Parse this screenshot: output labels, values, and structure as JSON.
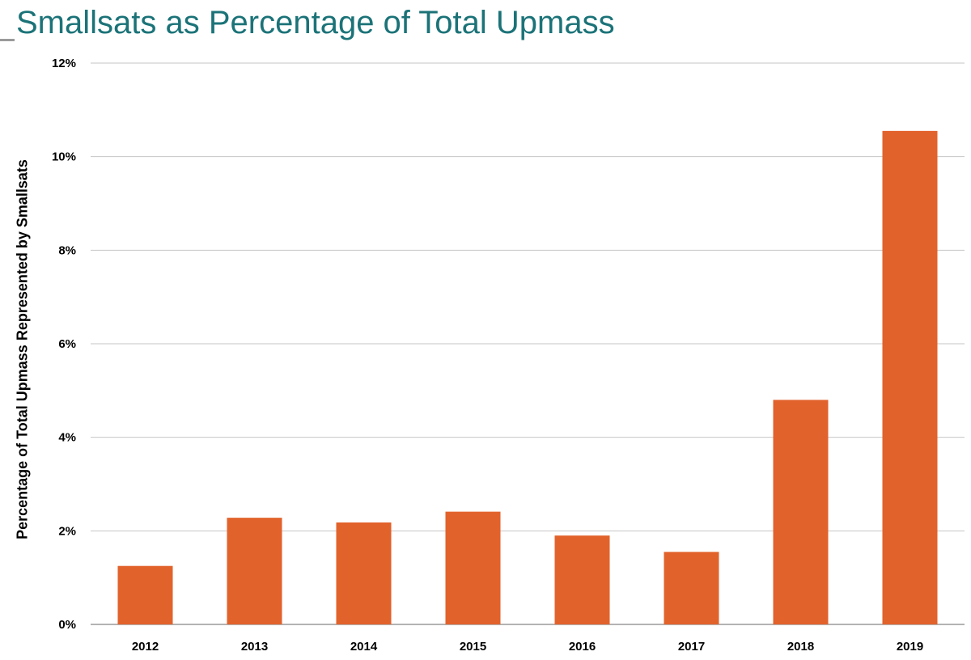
{
  "colors": {
    "title": "#1b7378",
    "bar": "#e2622b",
    "grid": "#c6c6c6",
    "axis": "#9a9a9a"
  },
  "chart_data": {
    "type": "bar",
    "title": "Smallsats as Percentage of Total Upmass",
    "xlabel": "",
    "ylabel": "Percentage of Total Upmass Represented by Smallsats",
    "categories": [
      "2012",
      "2013",
      "2014",
      "2015",
      "2016",
      "2017",
      "2018",
      "2019"
    ],
    "values": [
      1.25,
      2.28,
      2.18,
      2.41,
      1.9,
      1.55,
      4.8,
      10.55
    ],
    "ylim": [
      0,
      12
    ],
    "yticks": [
      0,
      2,
      4,
      6,
      8,
      10,
      12
    ],
    "ytick_labels": [
      "0%",
      "2%",
      "4%",
      "6%",
      "8%",
      "10%",
      "12%"
    ],
    "grid": true,
    "legend": "none"
  }
}
